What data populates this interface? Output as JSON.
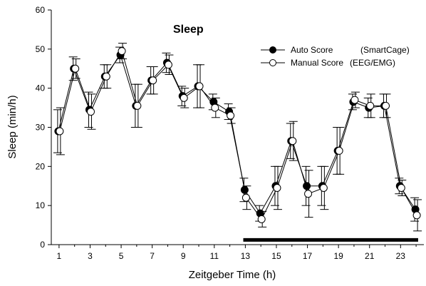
{
  "chart_data": {
    "type": "line",
    "title": "Sleep",
    "xlabel": "Zeitgeber Time (h)",
    "ylabel": "Sleep (min/h)",
    "xlim": [
      0.5,
      24.5
    ],
    "ylim": [
      0,
      60
    ],
    "x_ticks": [
      1,
      3,
      5,
      7,
      9,
      11,
      13,
      15,
      17,
      19,
      21,
      23
    ],
    "y_ticks": [
      0,
      10,
      20,
      30,
      40,
      50,
      60
    ],
    "x": [
      1,
      2,
      3,
      4,
      5,
      6,
      7,
      8,
      9,
      10,
      11,
      12,
      13,
      14,
      15,
      16,
      17,
      18,
      19,
      20,
      21,
      22,
      23,
      24
    ],
    "series": [
      {
        "name": "Auto Score",
        "name_suffix": "(SmartCage)",
        "marker": "filled-circle",
        "color": "#000000",
        "values": [
          29,
          45,
          34.5,
          43,
          48.5,
          35.5,
          42,
          46.5,
          38,
          40.5,
          36.5,
          34,
          14,
          8,
          15,
          26.5,
          15,
          15,
          24,
          36.5,
          35,
          35.5,
          15,
          9
        ],
        "error": [
          5.5,
          3,
          4.5,
          3,
          2,
          5.5,
          3.5,
          2.5,
          2.5,
          5.5,
          2,
          2,
          3,
          2,
          5,
          4.5,
          5,
          5,
          6,
          2,
          2.5,
          3,
          2,
          3
        ]
      },
      {
        "name": "Manual Score",
        "name_suffix": "(EEG/EMG)",
        "marker": "open-circle",
        "color": "#000000",
        "values": [
          29,
          45,
          34,
          43,
          49.5,
          35.5,
          42,
          46,
          37.5,
          40.5,
          35,
          33,
          12,
          6.5,
          14.5,
          26.5,
          13,
          14.5,
          24,
          37,
          35.5,
          35.5,
          14.5,
          7.5
        ],
        "error": [
          6,
          2.5,
          4.5,
          3,
          2,
          5.5,
          3.5,
          2.5,
          2.5,
          5.5,
          2.5,
          2,
          3,
          2,
          5.5,
          5,
          6,
          5.5,
          6,
          2,
          3,
          3,
          2,
          4
        ]
      }
    ],
    "dark_phase_bar": {
      "x_start": 12.5,
      "x_end": 24.5,
      "y": 1.2
    },
    "grid": false,
    "legend_position": "top-right"
  }
}
